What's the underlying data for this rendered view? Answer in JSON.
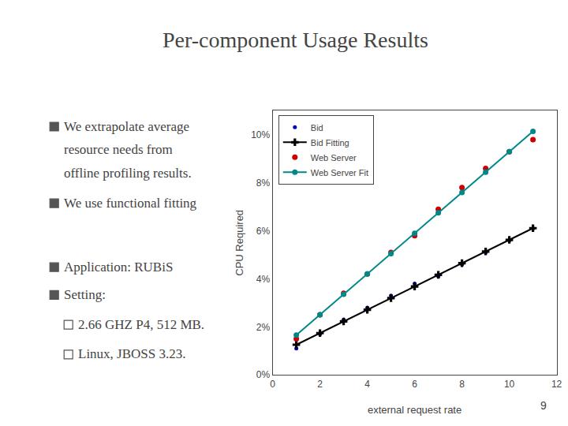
{
  "chart_data": {
    "type": "scatter",
    "title": "Per-component Usage Results",
    "annotations": [
      "We extrapolate average",
      "resource needs from",
      "offline profiling results.",
      "We use functional fitting",
      "Application: RUBiS",
      "Setting:",
      "2.66 GHZ P4, 512 MB.",
      "Linux, JBOSS 3.23.",
      "9"
    ],
    "x_label": "external request rate",
    "y_label": "CPU Required",
    "x": [
      1,
      2,
      3,
      4,
      5,
      6,
      7,
      8,
      9,
      10,
      11
    ],
    "series": [
      {
        "name": "Bid",
        "type": "scatter",
        "marker": "dot",
        "color": "#0000bb",
        "values": [
          1.1,
          1.7,
          2.3,
          2.8,
          3.3,
          3.8,
          4.1,
          4.6,
          5.1,
          5.6,
          6.1
        ]
      },
      {
        "name": "Bid Fitting",
        "type": "line",
        "marker": "cross",
        "color": "#000000",
        "values": [
          1.254545,
          1.74,
          2.225455,
          2.710909,
          3.196364,
          3.681818,
          4.167273,
          4.652727,
          5.138182,
          5.623636,
          6.109091
        ]
      },
      {
        "name": "Web Server",
        "type": "scatter",
        "marker": "circle",
        "color": "#cc0000",
        "values": [
          1.5,
          2.5,
          3.4,
          4.2,
          5.1,
          5.8,
          6.9,
          7.8,
          8.6,
          9.3,
          9.8
        ]
      },
      {
        "name": "Web Server Fit",
        "type": "line",
        "marker": "circle",
        "color": "#008888",
        "values": [
          1.659091,
          2.507273,
          3.355455,
          4.203636,
          5.051818,
          5.9,
          6.748182,
          7.596364,
          8.444545,
          9.292727,
          10.140909
        ]
      }
    ],
    "xlim": [
      0,
      12
    ],
    "xticks": [
      0,
      2,
      4,
      6,
      8,
      10,
      12
    ],
    "ylim": [
      0,
      11
    ],
    "yticks": [
      {
        "value": 0,
        "label": "0%"
      },
      {
        "value": 2,
        "label": "2%"
      },
      {
        "value": 4,
        "label": "4%"
      },
      {
        "value": 6,
        "label": "6%"
      },
      {
        "value": 8,
        "label": "8%"
      },
      {
        "value": 10,
        "label": "10%"
      }
    ],
    "legend": "upper left",
    "grid": false
  }
}
